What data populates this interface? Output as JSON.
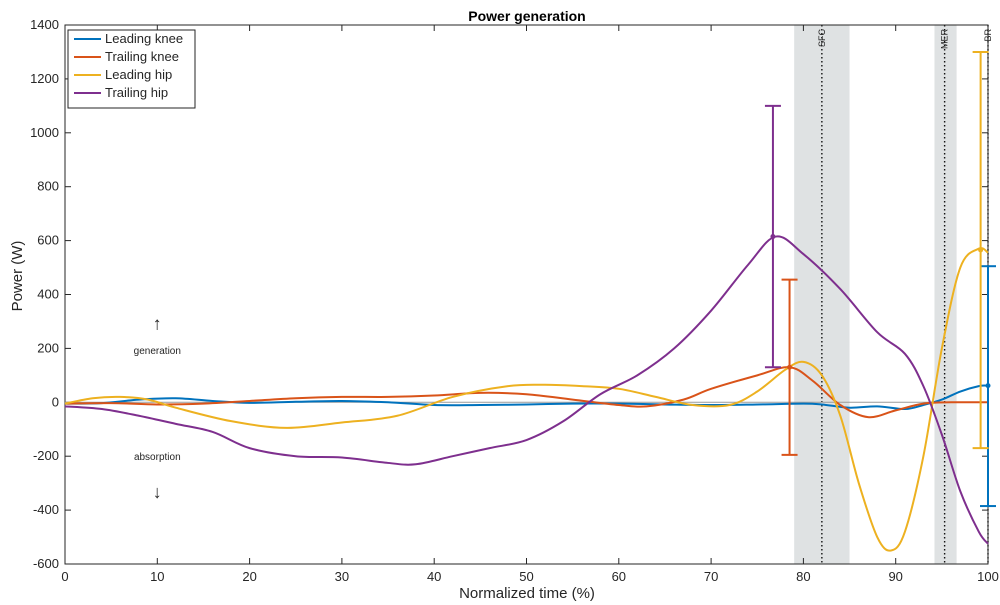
{
  "chart_data": {
    "type": "line",
    "title": "Power generation",
    "xlabel": "Normalized time (%)",
    "ylabel": "Power (W)",
    "xlim": [
      0,
      100
    ],
    "ylim": [
      -600,
      1400
    ],
    "xticks": [
      0,
      10,
      20,
      30,
      40,
      50,
      60,
      70,
      80,
      90,
      100
    ],
    "yticks": [
      -600,
      -400,
      -200,
      0,
      200,
      400,
      600,
      800,
      1000,
      1200,
      1400
    ],
    "legend_position": "top-left",
    "grid": false,
    "annotations": {
      "generation": "generation",
      "absorption": "absorption",
      "up_arrow": "↑",
      "down_arrow": "↓"
    },
    "events": [
      {
        "label": "SFC",
        "x": 82,
        "band": [
          79,
          85
        ]
      },
      {
        "label": "MER",
        "x": 95.3,
        "band": [
          94.2,
          96.6
        ]
      },
      {
        "label": "BR",
        "x": 100,
        "band": null
      }
    ],
    "series": [
      {
        "name": "Leading knee",
        "color": "#0072BD",
        "x": [
          0,
          4,
          8,
          12,
          16,
          20,
          25,
          30,
          35,
          40,
          45,
          50,
          55,
          60,
          65,
          70,
          75,
          80,
          82,
          85,
          88,
          91,
          93,
          95,
          97,
          99,
          100
        ],
        "y": [
          -5,
          -3,
          10,
          15,
          5,
          -2,
          2,
          5,
          0,
          -10,
          -10,
          -8,
          -5,
          -5,
          -8,
          -10,
          -8,
          -5,
          -8,
          -20,
          -15,
          -25,
          -10,
          10,
          40,
          60,
          62
        ],
        "errorbar": {
          "x": 100,
          "low": -385,
          "high": 505,
          "mean": 62
        }
      },
      {
        "name": "Trailing knee",
        "color": "#D95319",
        "x": [
          0,
          5,
          10,
          15,
          20,
          25,
          30,
          35,
          40,
          45,
          50,
          55,
          60,
          63,
          67,
          70,
          75,
          78.5,
          81,
          84,
          87,
          90,
          93,
          96,
          100
        ],
        "y": [
          -5,
          -3,
          -8,
          -5,
          5,
          15,
          20,
          20,
          25,
          35,
          30,
          10,
          -10,
          -15,
          10,
          50,
          100,
          130,
          80,
          -10,
          -55,
          -30,
          -5,
          0,
          0
        ],
        "errorbar": {
          "x": 78.5,
          "low": -195,
          "high": 455,
          "mean": 130
        }
      },
      {
        "name": "Leading hip",
        "color": "#EDB120",
        "x": [
          0,
          3,
          6,
          9,
          12,
          18,
          24,
          30,
          36,
          42,
          48,
          52,
          56,
          60,
          64,
          68,
          72,
          75,
          78,
          80,
          82,
          84,
          86,
          88,
          89.5,
          91,
          93,
          95,
          97,
          99,
          100
        ],
        "y": [
          -5,
          15,
          20,
          10,
          -20,
          -70,
          -95,
          -75,
          -50,
          20,
          60,
          65,
          60,
          50,
          20,
          -10,
          -10,
          40,
          120,
          150,
          100,
          -50,
          -300,
          -500,
          -550,
          -480,
          -200,
          200,
          500,
          570,
          555
        ],
        "errorbar": {
          "x": 99.2,
          "low": -170,
          "high": 1300,
          "mean": 565
        }
      },
      {
        "name": "Trailing hip",
        "color": "#7E2F8E",
        "x": [
          0,
          4,
          8,
          12,
          16,
          20,
          25,
          30,
          35,
          38,
          42,
          46,
          50,
          54,
          58,
          62,
          66,
          70,
          74,
          77,
          80,
          84,
          88,
          91,
          93,
          95,
          97,
          99,
          100
        ],
        "y": [
          -15,
          -25,
          -50,
          -80,
          -110,
          -170,
          -200,
          -205,
          -225,
          -230,
          -200,
          -170,
          -140,
          -70,
          30,
          100,
          200,
          340,
          510,
          615,
          550,
          420,
          260,
          180,
          60,
          -120,
          -330,
          -480,
          -525
        ],
        "errorbar": {
          "x": 76.7,
          "low": 130,
          "high": 1100,
          "mean": 615
        }
      }
    ]
  }
}
